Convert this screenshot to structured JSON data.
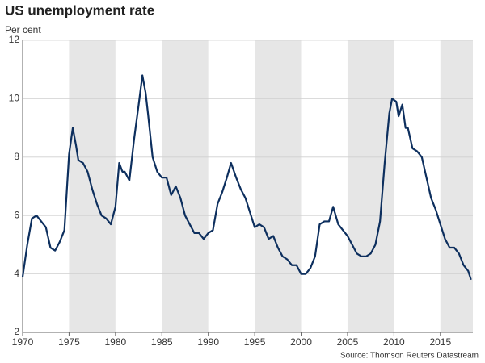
{
  "chart_data": {
    "type": "line",
    "title": "US unemployment rate",
    "subtitle": "Per cent",
    "source": "Source: Thomson Reuters Datastream",
    "x": [
      1970.0,
      1970.5,
      1971.0,
      1971.5,
      1972.0,
      1972.5,
      1973.0,
      1973.5,
      1974.0,
      1974.5,
      1975.0,
      1975.4,
      1975.75,
      1976.0,
      1976.5,
      1977.0,
      1977.5,
      1978.0,
      1978.5,
      1979.0,
      1979.5,
      1980.0,
      1980.4,
      1980.75,
      1981.0,
      1981.5,
      1982.0,
      1982.5,
      1982.9,
      1983.25,
      1983.5,
      1984.0,
      1984.5,
      1985.0,
      1985.5,
      1986.0,
      1986.5,
      1987.0,
      1987.5,
      1988.0,
      1988.5,
      1989.0,
      1989.5,
      1990.0,
      1990.5,
      1991.0,
      1991.5,
      1992.0,
      1992.45,
      1993.0,
      1993.5,
      1994.0,
      1994.5,
      1995.0,
      1995.5,
      1996.0,
      1996.5,
      1997.0,
      1997.5,
      1998.0,
      1998.5,
      1999.0,
      1999.5,
      2000.0,
      2000.5,
      2001.0,
      2001.5,
      2002.0,
      2002.5,
      2003.0,
      2003.45,
      2004.0,
      2004.5,
      2005.0,
      2005.5,
      2006.0,
      2006.5,
      2007.0,
      2007.5,
      2008.0,
      2008.5,
      2009.0,
      2009.5,
      2009.8,
      2010.25,
      2010.5,
      2010.9,
      2011.25,
      2011.5,
      2012.0,
      2012.5,
      2013.0,
      2013.5,
      2014.0,
      2014.5,
      2015.0,
      2015.5,
      2016.0,
      2016.5,
      2017.0,
      2017.5,
      2018.0,
      2018.3
    ],
    "series": [
      {
        "name": "US unemployment rate",
        "color": "#0d2f5e",
        "values": [
          3.9,
          5.0,
          5.9,
          6.0,
          5.8,
          5.6,
          4.9,
          4.8,
          5.1,
          5.5,
          8.1,
          9.0,
          8.4,
          7.9,
          7.8,
          7.5,
          6.9,
          6.4,
          6.0,
          5.9,
          5.7,
          6.3,
          7.8,
          7.5,
          7.5,
          7.2,
          8.6,
          9.8,
          10.8,
          10.2,
          9.5,
          8.0,
          7.5,
          7.3,
          7.3,
          6.7,
          7.0,
          6.6,
          6.0,
          5.7,
          5.4,
          5.4,
          5.2,
          5.4,
          5.5,
          6.4,
          6.8,
          7.3,
          7.8,
          7.3,
          6.9,
          6.6,
          6.1,
          5.6,
          5.7,
          5.6,
          5.2,
          5.3,
          4.9,
          4.6,
          4.5,
          4.3,
          4.3,
          4.0,
          4.0,
          4.2,
          4.6,
          5.7,
          5.8,
          5.8,
          6.3,
          5.7,
          5.5,
          5.3,
          5.0,
          4.7,
          4.6,
          4.6,
          4.7,
          5.0,
          5.8,
          7.8,
          9.5,
          10.0,
          9.9,
          9.4,
          9.8,
          9.0,
          9.0,
          8.3,
          8.2,
          8.0,
          7.3,
          6.6,
          6.2,
          5.7,
          5.2,
          4.9,
          4.9,
          4.7,
          4.3,
          4.1,
          3.8
        ]
      }
    ],
    "xlim": [
      1970,
      2018.5
    ],
    "xticks": [
      1970,
      1975,
      1980,
      1985,
      1990,
      1995,
      2000,
      2005,
      2010,
      2015
    ],
    "ylim": [
      2,
      12
    ],
    "yticks": [
      2,
      4,
      6,
      8,
      10,
      12
    ],
    "grid": true
  }
}
